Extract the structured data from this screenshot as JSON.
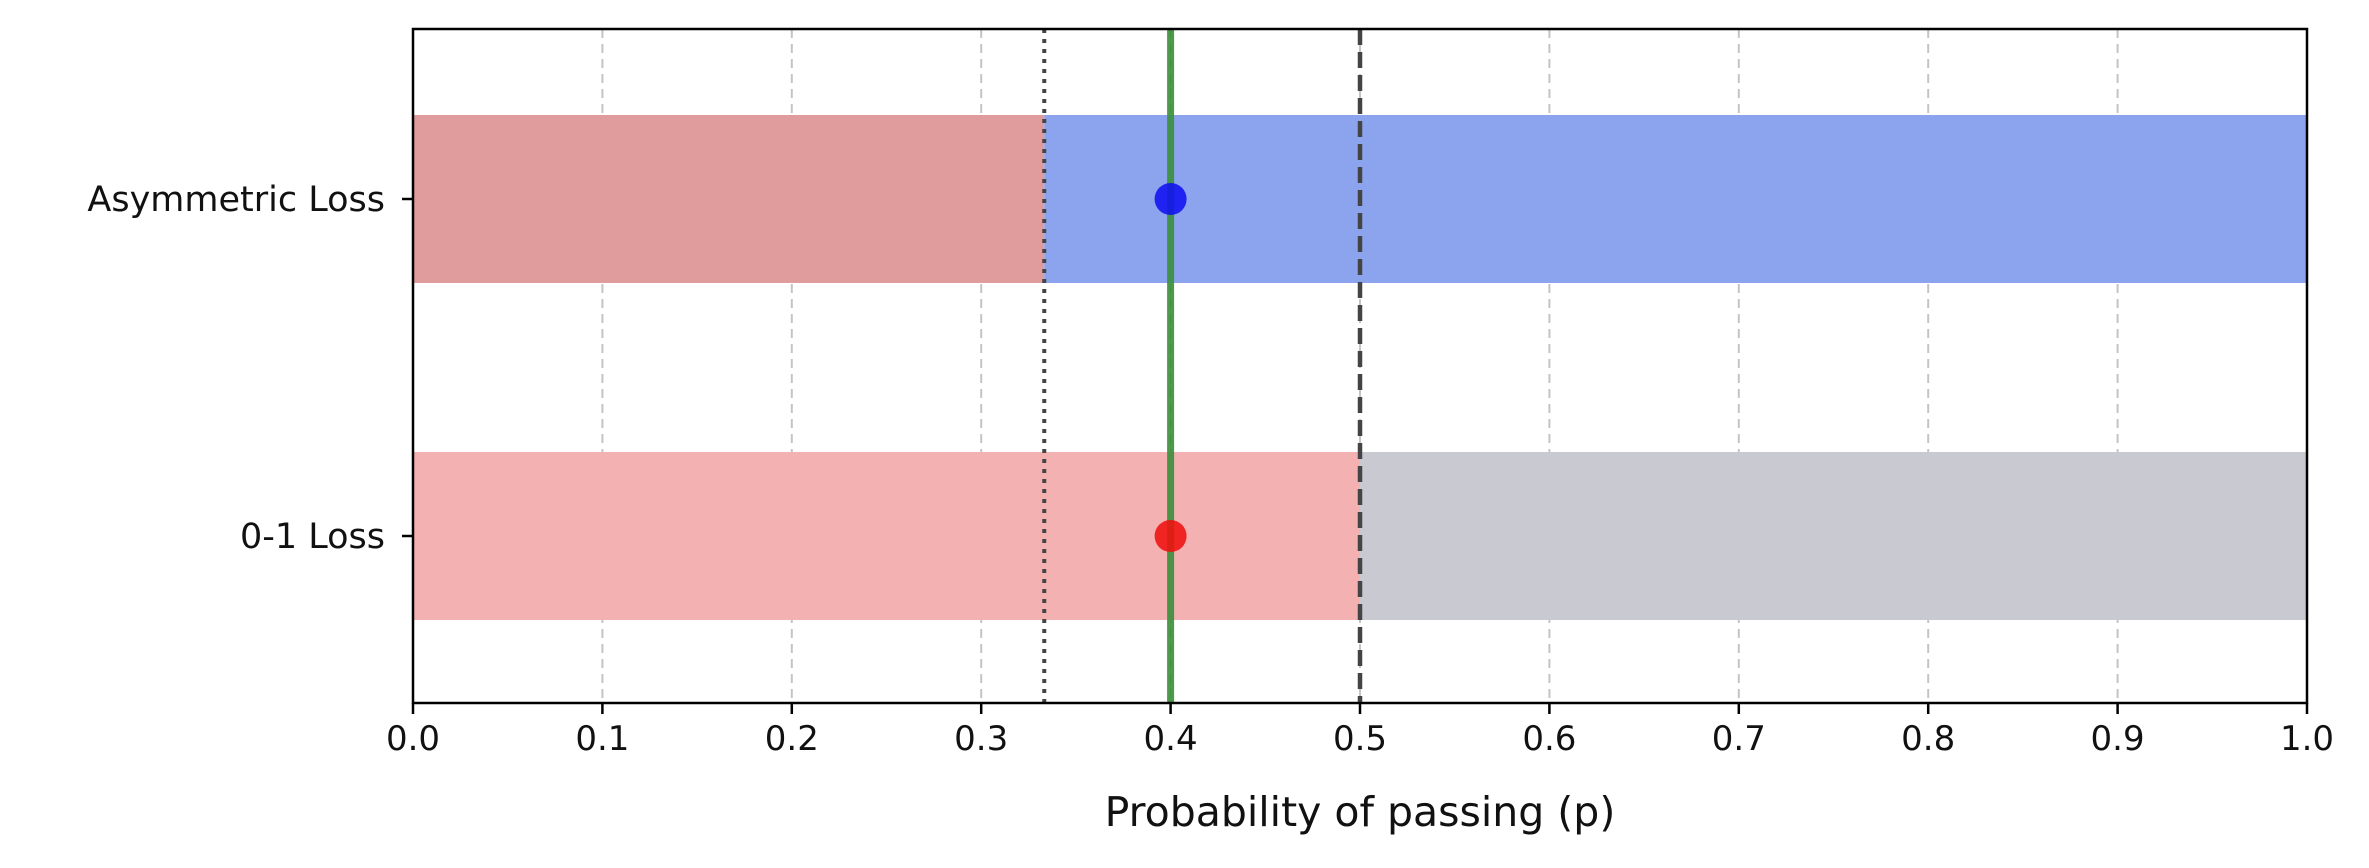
{
  "chart_data": {
    "type": "bar",
    "orientation": "horizontal-stacked",
    "title": "",
    "xlabel": "Probability of passing (p)",
    "ylabel": "",
    "xlim": [
      0.0,
      1.0
    ],
    "xticks": [
      "0.0",
      "0.1",
      "0.2",
      "0.3",
      "0.4",
      "0.5",
      "0.6",
      "0.7",
      "0.8",
      "0.9",
      "1.0"
    ],
    "grid": "x-dashed",
    "categories": [
      "Asymmetric Loss",
      "0-1 Loss"
    ],
    "segments": [
      {
        "category": "Asymmetric Loss",
        "start": 0.0,
        "end": 0.3333,
        "color": "#e09c9d"
      },
      {
        "category": "Asymmetric Loss",
        "start": 0.3333,
        "end": 1.0,
        "color": "#8ca4ee"
      },
      {
        "category": "0-1 Loss",
        "start": 0.0,
        "end": 0.5,
        "color": "#f4b1b2"
      },
      {
        "category": "0-1 Loss",
        "start": 0.5,
        "end": 1.0,
        "color": "#c9c9d2"
      }
    ],
    "reference_lines": [
      {
        "x": 0.3333,
        "style": "dotted",
        "color": "#444444"
      },
      {
        "x": 0.5,
        "style": "dashed",
        "color": "#444444"
      },
      {
        "x": 0.4,
        "style": "solid",
        "color": "#3a8f3a"
      }
    ],
    "points": [
      {
        "category": "Asymmetric Loss",
        "x": 0.4,
        "color": "#1010f0"
      },
      {
        "category": "0-1 Loss",
        "x": 0.4,
        "color": "#f01010"
      }
    ]
  }
}
